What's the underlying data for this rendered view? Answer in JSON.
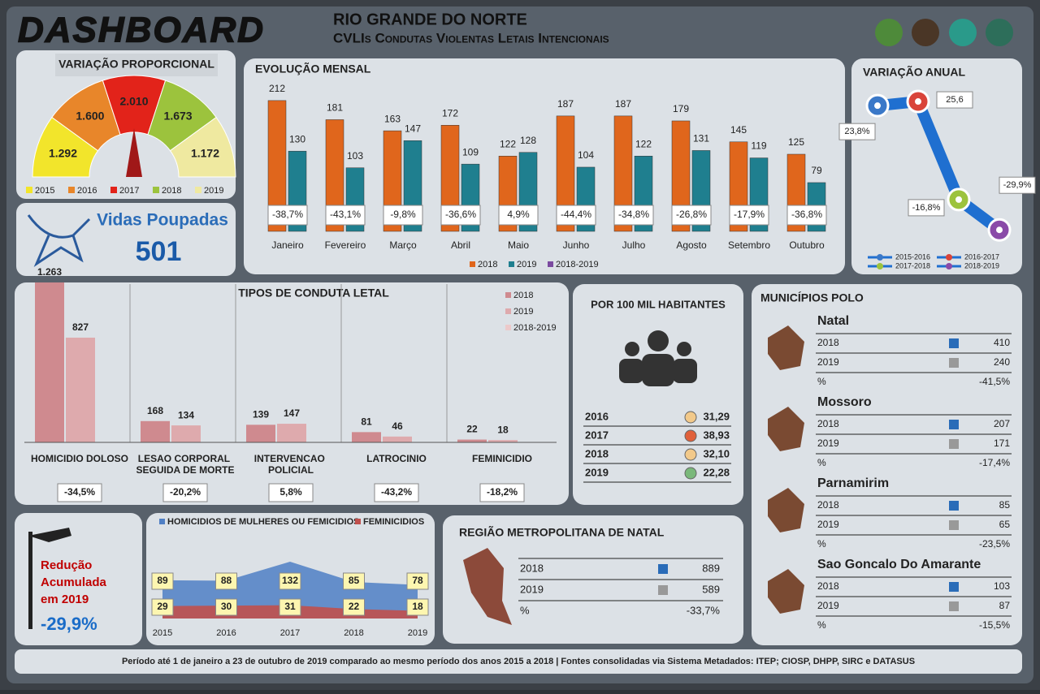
{
  "header": {
    "title": "DASHBOARD",
    "state": "RIO GRANDE DO NORTE",
    "subtitle": "CVLIs Condutas Violentas Letais Intencionais"
  },
  "chart_data": [
    {
      "type": "gauge",
      "title": "VARIAÇÃO PROPORCIONAL",
      "categories": [
        "2015",
        "2016",
        "2017",
        "2018",
        "2019"
      ],
      "values": [
        1292,
        1600,
        2010,
        1673,
        1172
      ],
      "value_labels": [
        "1.292",
        "1.600",
        "2.010",
        "1.673",
        "1.172"
      ],
      "colors": [
        "#f2e52b",
        "#e8862a",
        "#e2231a",
        "#9cc33d",
        "#efe9a0"
      ]
    },
    {
      "type": "bar",
      "title": "EVOLUÇÃO MENSAL",
      "categories": [
        "Janeiro",
        "Fevereiro",
        "Março",
        "Abril",
        "Maio",
        "Junho",
        "Julho",
        "Agosto",
        "Setembro",
        "Outubro"
      ],
      "series": [
        {
          "name": "2018",
          "color": "#e0661c",
          "values": [
            212,
            181,
            163,
            172,
            122,
            187,
            187,
            179,
            145,
            125
          ]
        },
        {
          "name": "2019",
          "color": "#1f7f8f",
          "values": [
            130,
            103,
            147,
            109,
            128,
            104,
            122,
            131,
            119,
            79
          ]
        },
        {
          "name": "2018-2019",
          "color": "#7b4aa0",
          "values": [
            -38.7,
            -43.1,
            -9.8,
            -36.6,
            4.9,
            -44.4,
            -34.8,
            -26.8,
            -17.9,
            -36.8
          ],
          "value_labels": [
            "-38,7%",
            "-43,1%",
            "-9,8%",
            "-36,6%",
            "4,9%",
            "-44,4%",
            "-34,8%",
            "-26,8%",
            "-17,9%",
            "-36,8%"
          ]
        }
      ]
    },
    {
      "type": "line",
      "title": "VARIAÇÃO ANUAL",
      "categories": [
        "2015-2016",
        "2016-2017",
        "2017-2018",
        "2018-2019"
      ],
      "values": [
        23.8,
        25.6,
        -16.8,
        -29.9
      ],
      "value_labels": [
        "23,8%",
        "25,6",
        "-16,8%",
        "-29,9%"
      ],
      "colors": [
        "#3a78c8",
        "#d9443a",
        "#9cc33d",
        "#8a4aa8"
      ],
      "line_color": "#1f6fd0"
    },
    {
      "type": "bar",
      "title": "TIPOS DE CONDUTA LETAL",
      "categories": [
        "HOMICIDIO DOLOSO",
        "LESAO CORPORAL SEGUIDA DE MORTE",
        "INTERVENCAO POLICIAL",
        "LATROCINIO",
        "FEMINICIDIO"
      ],
      "series": [
        {
          "name": "2018",
          "color": "#cf8a8f",
          "values": [
            1263,
            168,
            139,
            81,
            22
          ],
          "value_labels": [
            "1.263",
            "168",
            "139",
            "81",
            "22"
          ]
        },
        {
          "name": "2019",
          "color": "#deaaad",
          "values": [
            827,
            134,
            147,
            46,
            18
          ]
        },
        {
          "name": "2018-2019",
          "color": "#ecc9ca",
          "values": [
            -34.5,
            -20.2,
            5.8,
            -43.2,
            -18.2
          ],
          "value_labels": [
            "-34,5%",
            "-20,2%",
            "5,8%",
            "-43,2%",
            "-18,2%"
          ]
        }
      ]
    },
    {
      "type": "area",
      "categories": [
        "2015",
        "2016",
        "2017",
        "2018",
        "2019"
      ],
      "series": [
        {
          "name": "HOMICIDIOS DE MULHERES OU FEMICIDIOS",
          "color": "#4f7fc4",
          "values": [
            89,
            88,
            132,
            85,
            78
          ]
        },
        {
          "name": "FEMINICIDIOS",
          "color": "#c0504d",
          "values": [
            29,
            30,
            31,
            22,
            18
          ]
        }
      ]
    }
  ],
  "vidas_poupadas": {
    "label": "Vidas Poupadas",
    "value": "501"
  },
  "por_100_mil": {
    "title": "POR 100 MIL HABITANTES",
    "rows": [
      [
        "2016",
        "31,29"
      ],
      [
        "2017",
        "38,93"
      ],
      [
        "2018",
        "32,10"
      ],
      [
        "2019",
        "22,28"
      ]
    ]
  },
  "municipios_polo": {
    "title": "MUNICÍPIOS POLO",
    "cities": [
      {
        "name": "Natal",
        "rows": [
          [
            "2018",
            "410"
          ],
          [
            "2019",
            "240"
          ],
          [
            "%",
            "-41,5%"
          ]
        ]
      },
      {
        "name": "Mossoro",
        "rows": [
          [
            "2018",
            "207"
          ],
          [
            "2019",
            "171"
          ],
          [
            "%",
            "-17,4%"
          ]
        ]
      },
      {
        "name": "Parnamirim",
        "rows": [
          [
            "2018",
            "85"
          ],
          [
            "2019",
            "65"
          ],
          [
            "%",
            "-23,5%"
          ]
        ]
      },
      {
        "name": "Sao Goncalo Do Amarante",
        "rows": [
          [
            "2018",
            "103"
          ],
          [
            "2019",
            "87"
          ],
          [
            "%",
            "-15,5%"
          ]
        ]
      }
    ]
  },
  "reducao_acumulada": {
    "label_lines": [
      "Redução",
      "Acumulada",
      "em 2019"
    ],
    "value": "-29,9%"
  },
  "regiao_metropolitana": {
    "title": "REGIÃO METROPOLITANA DE NATAL",
    "rows": [
      [
        "2018",
        "889"
      ],
      [
        "2019",
        "589"
      ],
      [
        "%",
        "-33,7%"
      ]
    ]
  },
  "footer": "Período até 1 de janeiro a 23 de outubro de 2019 comparado ao mesmo período dos anos 2015 a 2018 | Fontes consolidadas via Sistema Metadados: ITEP; CIOSP, DHPP, SIRC e DATASUS"
}
